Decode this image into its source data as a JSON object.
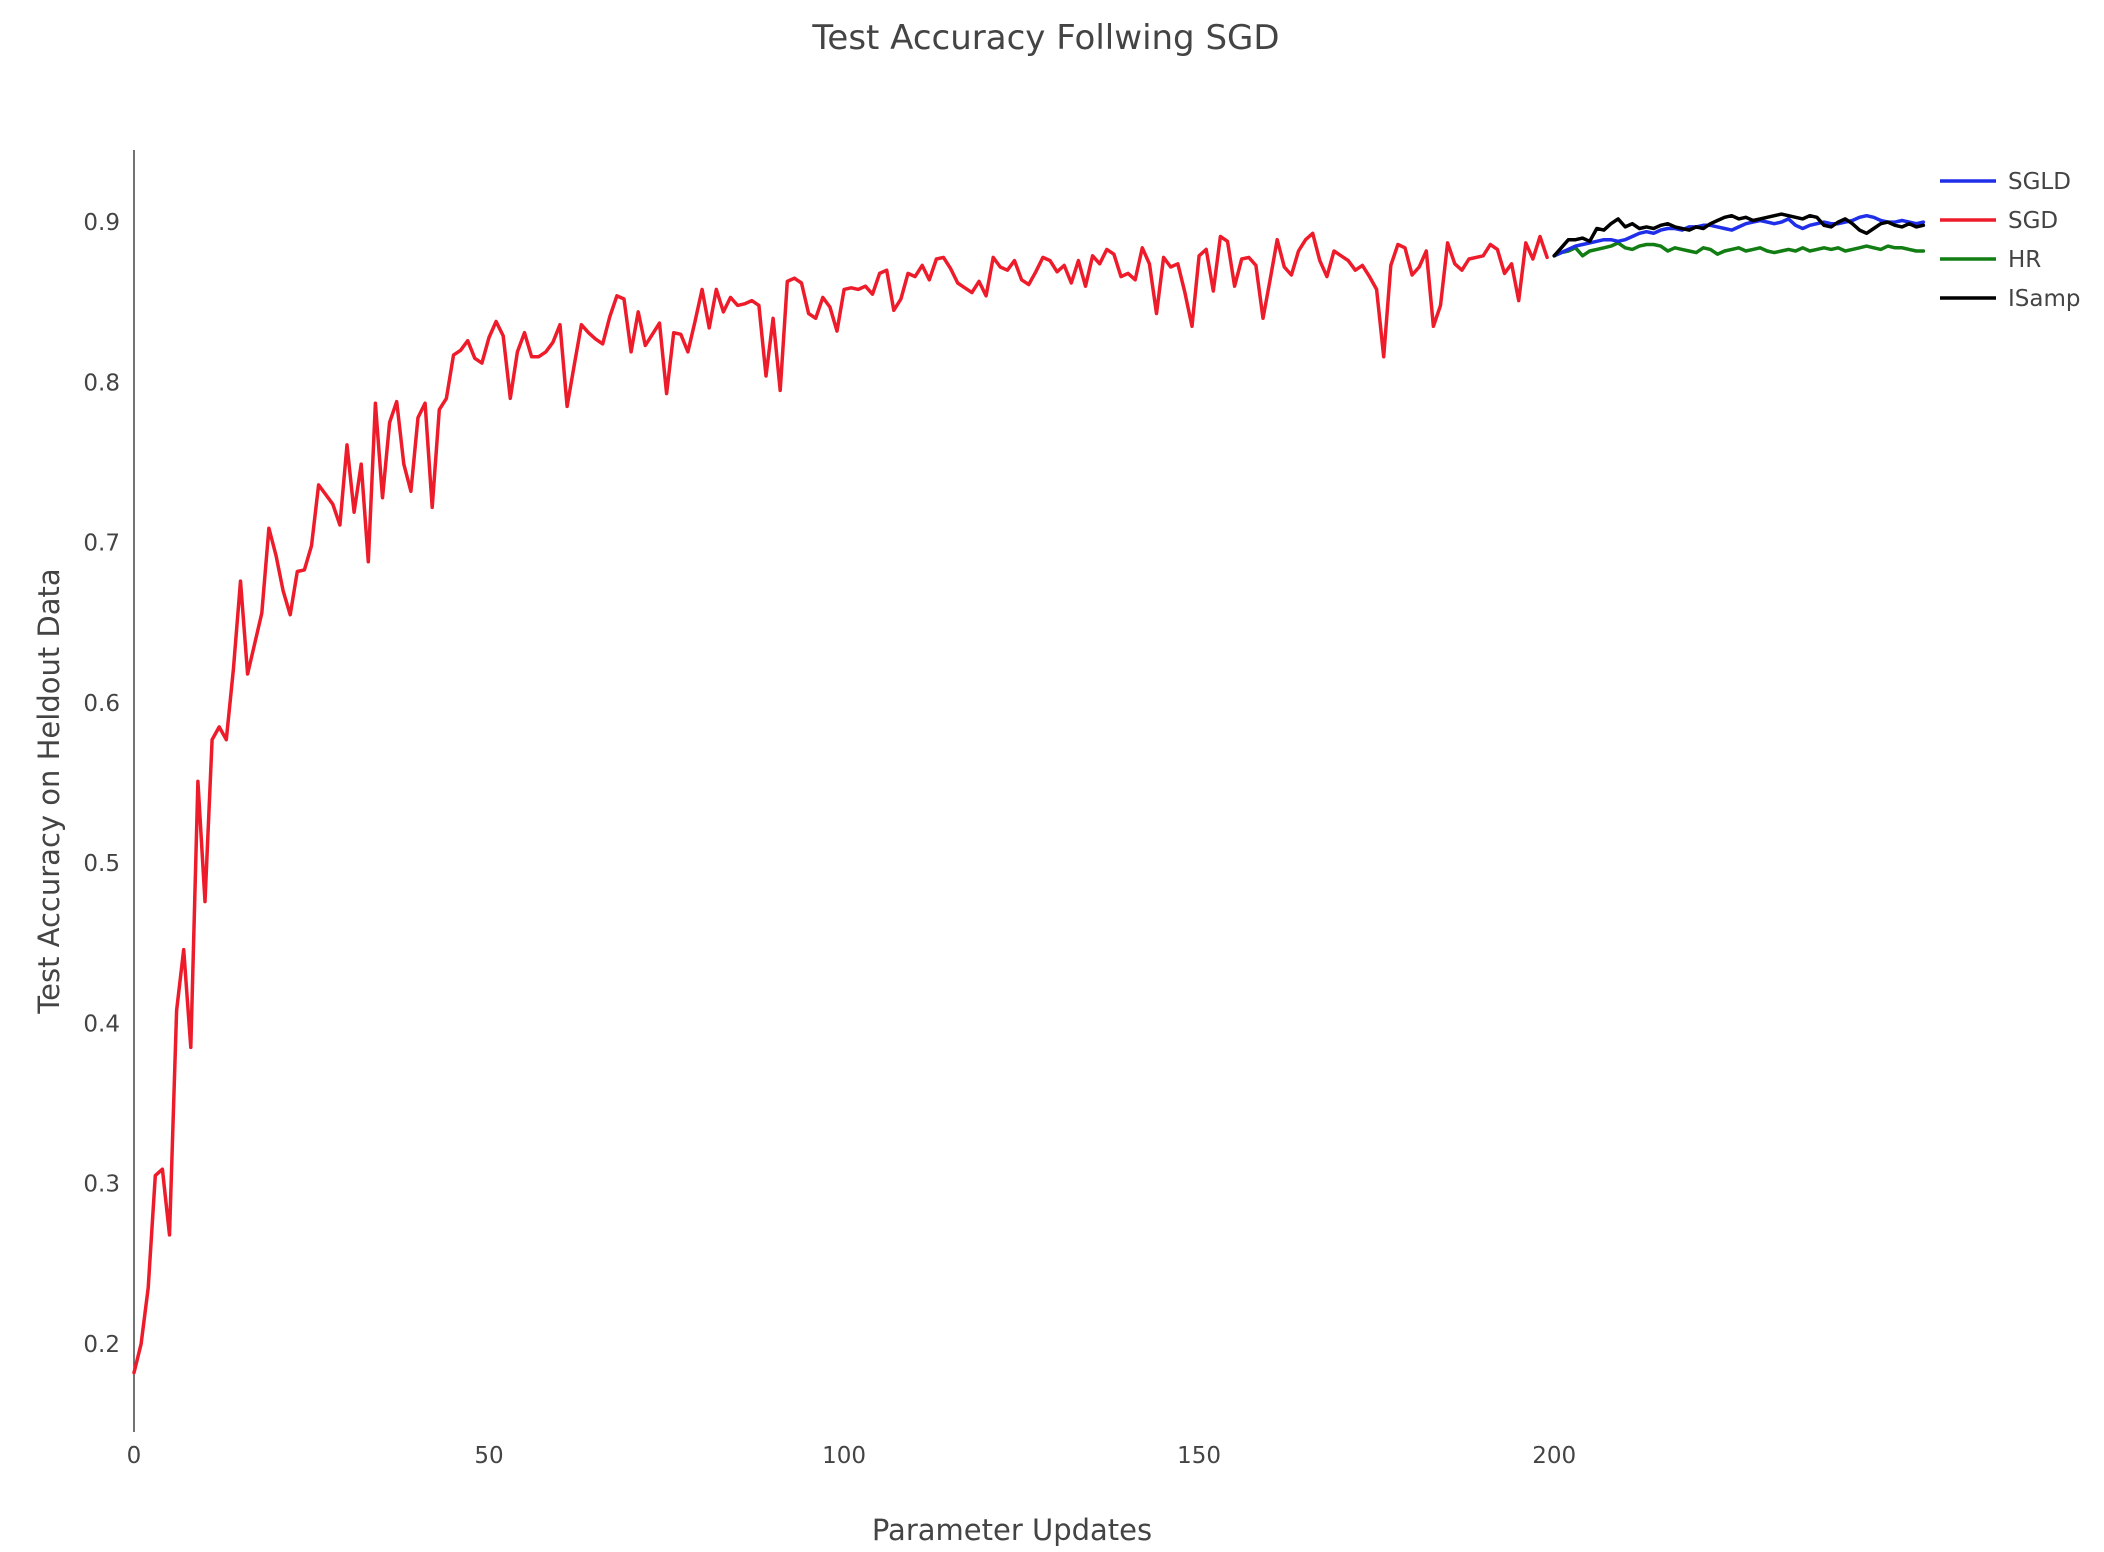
{
  "chart_data": {
    "type": "line",
    "title": "Test Accuracy Follwing SGD",
    "xlabel": "Parameter Updates",
    "ylabel": "Test Accuracy on Heldout Data",
    "xlim": [
      0,
      248
    ],
    "ylim": [
      0.145,
      0.945
    ],
    "xticks": [
      0,
      50,
      100,
      150,
      200
    ],
    "yticks": [
      0.2,
      0.3,
      0.4,
      0.5,
      0.6,
      0.7,
      0.8,
      0.9
    ],
    "xtick_labels": [
      "0",
      "50",
      "100",
      "150",
      "200"
    ],
    "ytick_labels": [
      "0.2",
      "0.3",
      "0.4",
      "0.5",
      "0.6",
      "0.7",
      "0.8",
      "0.9"
    ],
    "grid": false,
    "legend_position": "top-right",
    "series": [
      {
        "name": "SGLD",
        "color": "#1f2ee8",
        "x_start": 200,
        "values": [
          0.879,
          0.881,
          0.883,
          0.885,
          0.886,
          0.887,
          0.888,
          0.889,
          0.889,
          0.888,
          0.889,
          0.891,
          0.893,
          0.894,
          0.893,
          0.895,
          0.896,
          0.896,
          0.895,
          0.897,
          0.897,
          0.898,
          0.898,
          0.897,
          0.896,
          0.895,
          0.897,
          0.899,
          0.9,
          0.901,
          0.9,
          0.899,
          0.9,
          0.902,
          0.898,
          0.896,
          0.898,
          0.899,
          0.9,
          0.899,
          0.899,
          0.9,
          0.901,
          0.903,
          0.904,
          0.903,
          0.901,
          0.9,
          0.9,
          0.901,
          0.9,
          0.899,
          0.9
        ]
      },
      {
        "name": "SGD",
        "color": "#ee1c2b",
        "x_start": 0,
        "values": [
          0.182,
          0.2,
          0.235,
          0.305,
          0.309,
          0.268,
          0.408,
          0.446,
          0.385,
          0.551,
          0.476,
          0.577,
          0.585,
          0.577,
          0.621,
          0.676,
          0.618,
          0.637,
          0.656,
          0.709,
          0.692,
          0.67,
          0.655,
          0.682,
          0.683,
          0.698,
          0.736,
          0.73,
          0.724,
          0.711,
          0.761,
          0.719,
          0.749,
          0.688,
          0.787,
          0.728,
          0.775,
          0.788,
          0.749,
          0.732,
          0.778,
          0.787,
          0.722,
          0.783,
          0.79,
          0.817,
          0.82,
          0.826,
          0.815,
          0.812,
          0.828,
          0.838,
          0.829,
          0.79,
          0.819,
          0.831,
          0.816,
          0.816,
          0.819,
          0.825,
          0.836,
          0.785,
          0.811,
          0.836,
          0.831,
          0.827,
          0.824,
          0.841,
          0.854,
          0.852,
          0.819,
          0.844,
          0.823,
          0.83,
          0.837,
          0.793,
          0.831,
          0.83,
          0.819,
          0.838,
          0.858,
          0.834,
          0.858,
          0.844,
          0.853,
          0.848,
          0.849,
          0.851,
          0.848,
          0.804,
          0.84,
          0.795,
          0.863,
          0.865,
          0.862,
          0.843,
          0.84,
          0.853,
          0.847,
          0.832,
          0.858,
          0.859,
          0.858,
          0.86,
          0.855,
          0.868,
          0.87,
          0.845,
          0.852,
          0.868,
          0.866,
          0.873,
          0.864,
          0.877,
          0.878,
          0.871,
          0.862,
          0.859,
          0.856,
          0.863,
          0.854,
          0.878,
          0.872,
          0.87,
          0.876,
          0.864,
          0.861,
          0.869,
          0.878,
          0.876,
          0.869,
          0.873,
          0.862,
          0.876,
          0.86,
          0.879,
          0.874,
          0.883,
          0.88,
          0.866,
          0.868,
          0.864,
          0.884,
          0.874,
          0.843,
          0.878,
          0.872,
          0.874,
          0.856,
          0.835,
          0.879,
          0.883,
          0.857,
          0.891,
          0.888,
          0.86,
          0.877,
          0.878,
          0.873,
          0.84,
          0.864,
          0.889,
          0.872,
          0.867,
          0.882,
          0.889,
          0.893,
          0.876,
          0.866,
          0.882,
          0.879,
          0.876,
          0.87,
          0.873,
          0.866,
          0.858,
          0.816,
          0.873,
          0.886,
          0.884,
          0.867,
          0.872,
          0.882,
          0.835,
          0.848,
          0.887,
          0.874,
          0.87,
          0.877,
          0.878,
          0.879,
          0.886,
          0.883,
          0.868,
          0.874,
          0.851,
          0.887,
          0.877,
          0.891,
          0.878
        ]
      },
      {
        "name": "HR",
        "color": "#117d12",
        "x_start": 200,
        "values": [
          0.879,
          0.881,
          0.882,
          0.884,
          0.879,
          0.882,
          0.883,
          0.884,
          0.885,
          0.887,
          0.884,
          0.883,
          0.885,
          0.886,
          0.886,
          0.885,
          0.882,
          0.884,
          0.883,
          0.882,
          0.881,
          0.884,
          0.883,
          0.88,
          0.882,
          0.883,
          0.884,
          0.882,
          0.883,
          0.884,
          0.882,
          0.881,
          0.882,
          0.883,
          0.882,
          0.884,
          0.882,
          0.883,
          0.884,
          0.883,
          0.884,
          0.882,
          0.883,
          0.884,
          0.885,
          0.884,
          0.883,
          0.885,
          0.884,
          0.884,
          0.883,
          0.882,
          0.882
        ]
      },
      {
        "name": "ISamp",
        "color": "#000000",
        "x_start": 200,
        "values": [
          0.879,
          0.884,
          0.889,
          0.889,
          0.89,
          0.888,
          0.896,
          0.895,
          0.899,
          0.902,
          0.897,
          0.899,
          0.896,
          0.897,
          0.896,
          0.898,
          0.899,
          0.897,
          0.896,
          0.895,
          0.897,
          0.896,
          0.899,
          0.901,
          0.903,
          0.904,
          0.902,
          0.903,
          0.901,
          0.902,
          0.903,
          0.904,
          0.905,
          0.904,
          0.903,
          0.902,
          0.904,
          0.903,
          0.898,
          0.897,
          0.9,
          0.902,
          0.899,
          0.895,
          0.893,
          0.896,
          0.899,
          0.9,
          0.898,
          0.897,
          0.899,
          0.897,
          0.898
        ]
      }
    ]
  }
}
